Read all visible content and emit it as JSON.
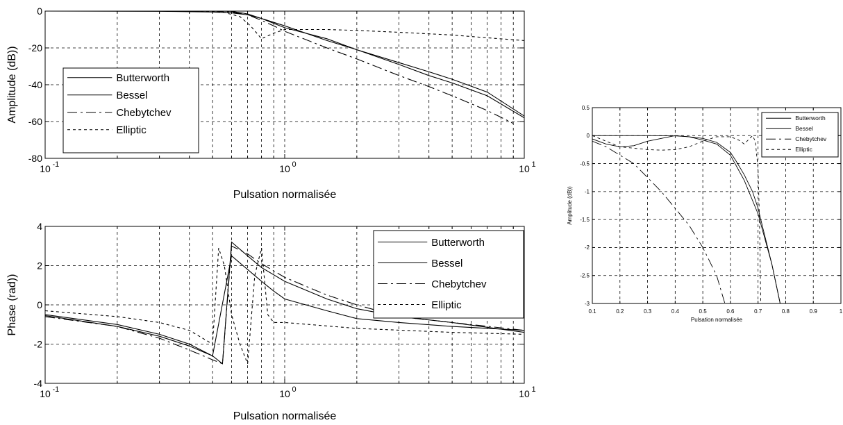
{
  "chart_data": [
    {
      "id": "amp_log",
      "type": "line",
      "xscale": "log",
      "xlim": [
        0.1,
        10
      ],
      "ylim": [
        -80,
        0
      ],
      "xticks": [
        0.1,
        1,
        10
      ],
      "xtick_labels": [
        "10",
        "10",
        "10"
      ],
      "xtick_exponents": [
        "-1",
        "0",
        "1"
      ],
      "yticks": [
        -80,
        -60,
        -40,
        -20,
        0
      ],
      "ytick_labels": [
        "-80",
        "-60",
        "-40",
        "-20",
        "0"
      ],
      "xlabel": "Pulsation normalisée",
      "ylabel": "Amplitude (dB))",
      "grid": true,
      "legend_position": "left",
      "series": [
        {
          "name": "Butterworth",
          "dash": "solid",
          "x": [
            0.1,
            0.3,
            0.5,
            0.6,
            0.7,
            0.8,
            1.0,
            1.5,
            2,
            3,
            4,
            5,
            7,
            10
          ],
          "y": [
            0,
            0,
            0,
            -0.1,
            -1.5,
            -4,
            -8,
            -16,
            -21,
            -28,
            -33,
            -37,
            -44,
            -57
          ]
        },
        {
          "name": "Bessel",
          "dash": "solid",
          "x": [
            0.1,
            0.3,
            0.5,
            0.6,
            0.7,
            0.8,
            1.0,
            1.5,
            2,
            3,
            4,
            5,
            7,
            10
          ],
          "y": [
            0,
            -0.1,
            -0.5,
            -1,
            -2,
            -4,
            -9,
            -15,
            -21,
            -29,
            -35,
            -39,
            -46,
            -58
          ]
        },
        {
          "name": "Chebytchev",
          "dash": "dashdot",
          "x": [
            0.1,
            0.3,
            0.5,
            0.6,
            0.7,
            0.8,
            0.9,
            1.0,
            1.5,
            2,
            3,
            4,
            5,
            7,
            9
          ],
          "y": [
            0,
            0,
            0,
            -0.5,
            -2,
            -5,
            -8,
            -11,
            -20,
            -26,
            -35,
            -41,
            -46,
            -54,
            -61
          ]
        },
        {
          "name": "Elliptic",
          "dash": "dashed",
          "x": [
            0.1,
            0.4,
            0.55,
            0.65,
            0.72,
            0.8,
            0.9,
            1.0,
            1.5,
            2,
            3,
            5,
            7,
            10
          ],
          "y": [
            0,
            0,
            -0.5,
            -3,
            -8,
            -15,
            -12,
            -10,
            -10,
            -10.5,
            -11.5,
            -13,
            -14.5,
            -16
          ]
        }
      ]
    },
    {
      "id": "phase_log",
      "type": "line",
      "xscale": "log",
      "xlim": [
        0.1,
        10
      ],
      "ylim": [
        -4,
        4
      ],
      "xticks": [
        0.1,
        1,
        10
      ],
      "xtick_labels": [
        "10",
        "10",
        "10"
      ],
      "xtick_exponents": [
        "-1",
        "0",
        "1"
      ],
      "yticks": [
        -4,
        -2,
        0,
        2,
        4
      ],
      "ytick_labels": [
        "-4",
        "-2",
        "0",
        "2",
        "4"
      ],
      "xlabel": "Pulsation normalisée",
      "ylabel": "Phase (rad))",
      "grid": true,
      "legend_position": "top-right",
      "series": [
        {
          "name": "Butterworth",
          "dash": "solid",
          "x": [
            0.1,
            0.2,
            0.3,
            0.4,
            0.5,
            0.55,
            0.6,
            0.7,
            0.8,
            1.0,
            1.5,
            2,
            3,
            5,
            10
          ],
          "y": [
            -0.5,
            -1.0,
            -1.5,
            -2.0,
            -2.6,
            -3.0,
            3.2,
            2.5,
            1.9,
            1.2,
            0.3,
            -0.2,
            -0.6,
            -0.9,
            -1.4
          ]
        },
        {
          "name": "Bessel",
          "dash": "solid",
          "x": [
            0.1,
            0.2,
            0.3,
            0.4,
            0.5,
            0.6,
            0.7,
            0.8,
            0.9,
            1.0,
            1.5,
            2,
            3,
            5,
            10
          ],
          "y": [
            -0.55,
            -1.1,
            -1.6,
            -2.1,
            -2.6,
            2.5,
            1.8,
            1.2,
            0.7,
            0.3,
            -0.3,
            -0.7,
            -0.9,
            -1.1,
            -1.3
          ]
        },
        {
          "name": "Chebytchev",
          "dash": "dashdot",
          "x": [
            0.1,
            0.2,
            0.3,
            0.4,
            0.5,
            0.55,
            0.6,
            0.7,
            0.8,
            1.0,
            1.5,
            2,
            3,
            5,
            10
          ],
          "y": [
            -0.6,
            -1.1,
            -1.7,
            -2.3,
            -2.8,
            -3.0,
            3.0,
            2.6,
            2.1,
            1.4,
            0.5,
            0.0,
            -0.6,
            -0.9,
            -1.3
          ]
        },
        {
          "name": "Elliptic",
          "dash": "dashed",
          "x": [
            0.1,
            0.2,
            0.3,
            0.4,
            0.5,
            0.53,
            0.56,
            0.6,
            0.65,
            0.7,
            0.75,
            0.8,
            0.85,
            0.9,
            1.0,
            2,
            5,
            10
          ],
          "y": [
            -0.3,
            -0.6,
            -0.9,
            -1.3,
            -2.0,
            2.9,
            2.0,
            -0.5,
            -2.0,
            -3.0,
            1.5,
            2.9,
            -0.5,
            -0.9,
            -0.9,
            -1.2,
            -1.4,
            -1.5
          ]
        }
      ]
    },
    {
      "id": "amp_lin",
      "type": "line",
      "xscale": "linear",
      "xlim": [
        0.1,
        1
      ],
      "ylim": [
        -3,
        0.5
      ],
      "xticks": [
        0.1,
        0.2,
        0.3,
        0.4,
        0.5,
        0.6,
        0.7,
        0.8,
        0.9,
        1
      ],
      "xtick_labels": [
        "0.1",
        "0.2",
        "0.3",
        "0.4",
        "0.5",
        "0.6",
        "0.7",
        "0.8",
        "0.9",
        "1"
      ],
      "yticks": [
        -3,
        -2.5,
        -2,
        -1.5,
        -1,
        -0.5,
        0,
        0.5
      ],
      "ytick_labels": [
        "-3",
        "-2.5",
        "-2",
        "-1.5",
        "-1",
        "-0.5",
        "0",
        "0.5"
      ],
      "xlabel": "Pulsation normalisée",
      "ylabel": "Amplitude (dB))",
      "grid": true,
      "legend_position": "top-right",
      "series": [
        {
          "name": "Butterworth",
          "dash": "solid",
          "x": [
            0.1,
            0.3,
            0.4,
            0.45,
            0.5,
            0.55,
            0.6,
            0.62,
            0.65,
            0.68,
            0.7,
            0.72,
            0.75,
            0.78
          ],
          "y": [
            0,
            0,
            -0.005,
            -0.02,
            -0.05,
            -0.12,
            -0.3,
            -0.45,
            -0.7,
            -1.0,
            -1.3,
            -1.7,
            -2.3,
            -3.0
          ]
        },
        {
          "name": "Bessel",
          "dash": "solid",
          "x": [
            0.1,
            0.15,
            0.2,
            0.25,
            0.3,
            0.35,
            0.4,
            0.45,
            0.5,
            0.55,
            0.6,
            0.65,
            0.7,
            0.75,
            0.78
          ],
          "y": [
            -0.06,
            -0.15,
            -0.2,
            -0.18,
            -0.1,
            -0.05,
            0,
            -0.02,
            -0.08,
            -0.15,
            -0.35,
            -0.8,
            -1.4,
            -2.3,
            -3.0
          ]
        },
        {
          "name": "Chebytchev",
          "dash": "dashdot",
          "x": [
            0.1,
            0.15,
            0.2,
            0.25,
            0.3,
            0.35,
            0.4,
            0.45,
            0.5,
            0.55,
            0.58
          ],
          "y": [
            -0.1,
            -0.2,
            -0.35,
            -0.5,
            -0.75,
            -1.0,
            -1.3,
            -1.6,
            -2.0,
            -2.5,
            -3.0
          ]
        },
        {
          "name": "Elliptic",
          "dash": "dashed",
          "x": [
            0.1,
            0.2,
            0.3,
            0.35,
            0.4,
            0.45,
            0.5,
            0.55,
            0.6,
            0.63,
            0.65,
            0.67,
            0.68,
            0.69,
            0.7,
            0.705,
            0.71
          ],
          "y": [
            0,
            -0.2,
            -0.25,
            -0.26,
            -0.25,
            -0.2,
            -0.1,
            -0.02,
            -0.02,
            -0.08,
            -0.15,
            -0.05,
            0,
            -0.1,
            -0.6,
            -1.5,
            -3.0
          ]
        }
      ]
    }
  ]
}
